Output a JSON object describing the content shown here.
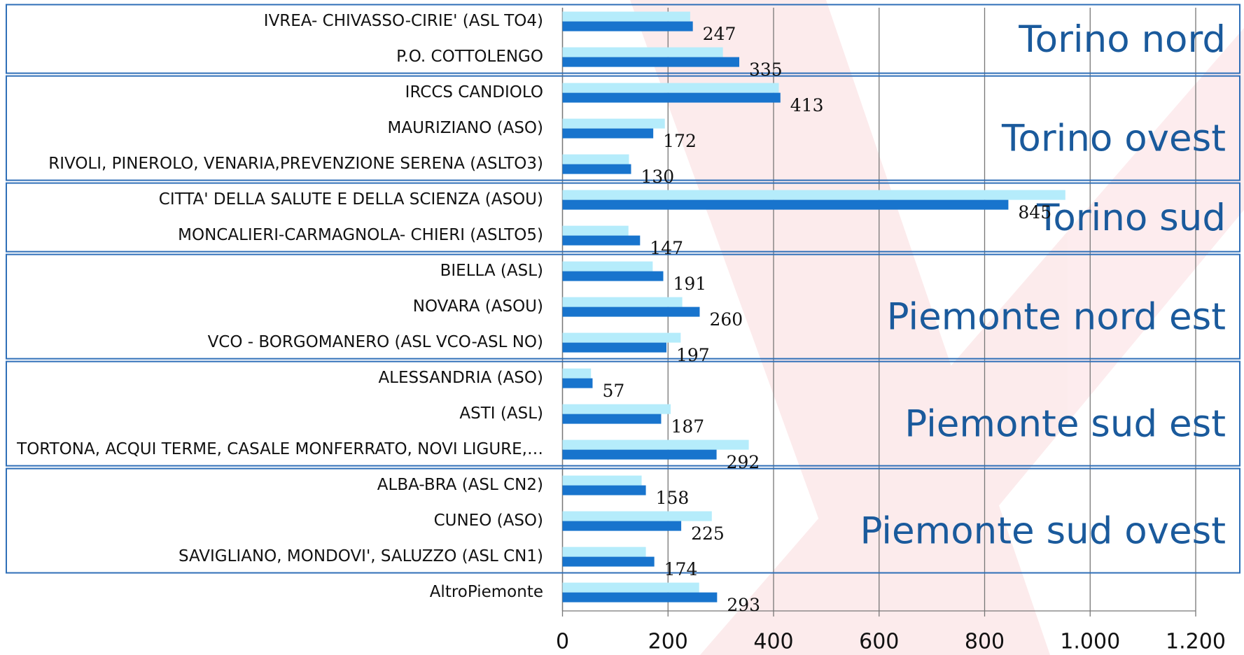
{
  "chart_data": {
    "type": "hbar",
    "categories": [
      "IVREA- CHIVASSO-CIRIE' (ASL TO4)",
      "P.O. COTTOLENGO",
      "IRCCS CANDIOLO",
      "MAURIZIANO (ASO)",
      "RIVOLI, PINEROLO, VENARIA,PREVENZIONE SERENA (ASLTO3)",
      "CITTA' DELLA SALUTE E DELLA SCIENZA (ASOU)",
      "MONCALIERI-CARMAGNOLA- CHIERI (ASLTO5)",
      "BIELLA (ASL)",
      "NOVARA (ASOU)",
      "VCO - BORGOMANERO (ASL VCO-ASL NO)",
      "ALESSANDRIA (ASO)",
      "ASTI (ASL)",
      "TORTONA, ACQUI TERME, CASALE MONFERRATO, NOVI LIGURE,…",
      "ALBA-BRA (ASL CN2)",
      "CUNEO (ASO)",
      "SAVIGLIANO, MONDOVI', SALUZZO (ASL CN1)",
      "AltroPiemonte"
    ],
    "series": [
      {
        "color": "#b5ecfb",
        "values": [
          242,
          304,
          410,
          194,
          126,
          953,
          125,
          171,
          227,
          224,
          54,
          205,
          353,
          150,
          283,
          158,
          259
        ]
      },
      {
        "color": "#1874cd",
        "values": [
          247,
          335,
          413,
          172,
          130,
          845,
          147,
          191,
          260,
          197,
          57,
          187,
          292,
          158,
          225,
          174,
          293
        ],
        "show_labels": true
      }
    ],
    "xlim": [
      0,
      1200
    ],
    "xticks": [
      0,
      200,
      400,
      600,
      800,
      {
        "value": 1000,
        "label": "1.000"
      },
      {
        "value": 1200,
        "label": "1.200"
      }
    ],
    "grid": true,
    "groups": [
      {
        "label": "Torino nord",
        "size": 2
      },
      {
        "label": "Torino ovest",
        "size": 3
      },
      {
        "label": "Torino sud",
        "size": 2
      },
      {
        "label": "Piemonte nord est",
        "size": 3
      },
      {
        "label": "Piemonte sud est",
        "size": 3
      },
      {
        "label": "Piemonte sud ovest",
        "size": 3
      }
    ]
  }
}
